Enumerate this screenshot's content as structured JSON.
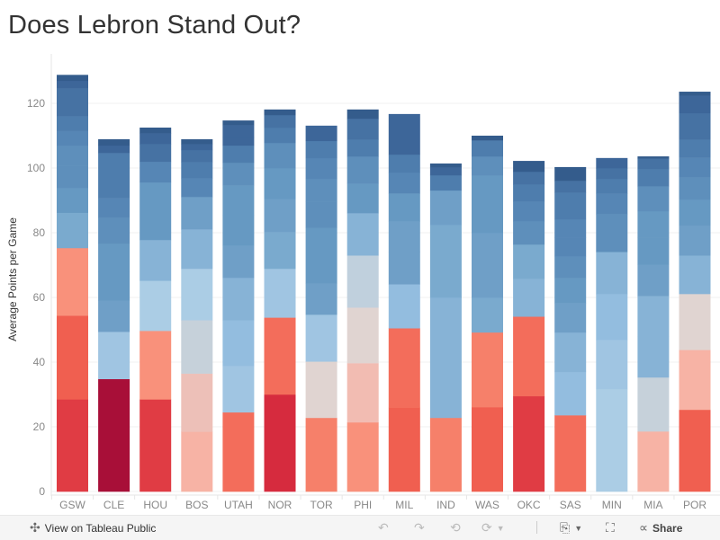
{
  "title": "Does Lebron Stand Out?",
  "chart_data": {
    "type": "bar",
    "stacked": true,
    "title": "Does Lebron Stand Out?",
    "xlabel": "",
    "ylabel": "Average Points per Game",
    "ylim": [
      0,
      132
    ],
    "yticks": [
      0,
      20,
      40,
      60,
      80,
      100,
      120
    ],
    "grid": true,
    "palette": {
      "R1": "#a80f38",
      "R2": "#d62b3e",
      "R3": "#e03c44",
      "R4": "#f05f50",
      "R5": "#f36d5b",
      "R6": "#f6806a",
      "R7": "#f9917b",
      "R8": "#f7b3a5",
      "P1": "#edc0b8",
      "P3": "#f2bcb2",
      "P2": "#e0d4d1",
      "G1": "#c6d1da",
      "G2": "#c0d0dd",
      "L1": "#abcde5",
      "L2": "#a0c5e2",
      "L3": "#93bddf",
      "L4": "#87b3d6",
      "L5": "#7aaace",
      "L6": "#6f9fc7",
      "L7": "#6699c2",
      "L8": "#5e8fbb",
      "L9": "#5686b5",
      "L10": "#4e7dad",
      "L11": "#4672a3",
      "L12": "#3d6699",
      "L13": "#345c8c"
    },
    "categories": [
      "GSW",
      "CLE",
      "HOU",
      "BOS",
      "UTAH",
      "NOR",
      "TOR",
      "PHI",
      "MIL",
      "IND",
      "WAS",
      "OKC",
      "SAS",
      "MIN",
      "MIA",
      "POR"
    ],
    "segments": [
      [
        [
          28.5,
          "R3"
        ],
        [
          25.9,
          "R4"
        ],
        [
          20.9,
          "R7"
        ],
        [
          10.9,
          "L5"
        ],
        [
          7.7,
          "L7"
        ],
        [
          6.9,
          "L8"
        ],
        [
          6.2,
          "L8"
        ],
        [
          4.5,
          "L9"
        ],
        [
          4.6,
          "L10"
        ],
        [
          3.7,
          "L11"
        ],
        [
          4.9,
          "L11"
        ],
        [
          2.3,
          "L12"
        ],
        [
          1.8,
          "L13"
        ]
      ],
      [
        [
          34.8,
          "R1"
        ],
        [
          14.6,
          "L2"
        ],
        [
          9.7,
          "L6"
        ],
        [
          8.9,
          "L7"
        ],
        [
          8.7,
          "L7"
        ],
        [
          8.0,
          "L8"
        ],
        [
          6.1,
          "L9"
        ],
        [
          13.9,
          "L10"
        ],
        [
          2.3,
          "L12"
        ],
        [
          1.9,
          "L13"
        ]
      ],
      [
        [
          28.5,
          "R3"
        ],
        [
          21.2,
          "R7"
        ],
        [
          15.5,
          "L1"
        ],
        [
          12.6,
          "L4"
        ],
        [
          17.8,
          "L7"
        ],
        [
          6.4,
          "L9"
        ],
        [
          5.5,
          "L11"
        ],
        [
          3.3,
          "L12"
        ],
        [
          1.7,
          "L13"
        ]
      ],
      [
        [
          18.5,
          "R8"
        ],
        [
          18.0,
          "P1"
        ],
        [
          16.5,
          "G1"
        ],
        [
          15.9,
          "L1"
        ],
        [
          12.2,
          "L4"
        ],
        [
          10.0,
          "L6"
        ],
        [
          5.8,
          "L9"
        ],
        [
          5.0,
          "L10"
        ],
        [
          3.7,
          "L11"
        ],
        [
          1.9,
          "L12"
        ],
        [
          1.4,
          "L13"
        ]
      ],
      [
        [
          24.5,
          "R5"
        ],
        [
          14.4,
          "L2"
        ],
        [
          14.1,
          "L3"
        ],
        [
          13.1,
          "L4"
        ],
        [
          10.0,
          "L6"
        ],
        [
          9.4,
          "L7"
        ],
        [
          9.2,
          "L7"
        ],
        [
          7.0,
          "L8"
        ],
        [
          5.3,
          "L10"
        ],
        [
          2.5,
          "L12"
        ],
        [
          3.8,
          "L12"
        ],
        [
          1.4,
          "L13"
        ]
      ],
      [
        [
          30.0,
          "R2"
        ],
        [
          23.8,
          "R5"
        ],
        [
          15.1,
          "L2"
        ],
        [
          11.4,
          "L5"
        ],
        [
          10.2,
          "L6"
        ],
        [
          9.5,
          "L7"
        ],
        [
          7.8,
          "L8"
        ],
        [
          4.7,
          "L10"
        ],
        [
          3.9,
          "L11"
        ],
        [
          1.7,
          "L13"
        ]
      ],
      [
        [
          22.8,
          "R6"
        ],
        [
          17.4,
          "P2"
        ],
        [
          14.5,
          "L2"
        ],
        [
          9.7,
          "L6"
        ],
        [
          17.2,
          "L7"
        ],
        [
          8.1,
          "L8"
        ],
        [
          7.0,
          "L8"
        ],
        [
          6.4,
          "L9"
        ],
        [
          5.3,
          "L10"
        ],
        [
          4.7,
          "L12"
        ]
      ],
      [
        [
          21.4,
          "R7"
        ],
        [
          18.3,
          "P3"
        ],
        [
          17.2,
          "P2"
        ],
        [
          16.1,
          "G2"
        ],
        [
          13.1,
          "L4"
        ],
        [
          9.2,
          "L7"
        ],
        [
          8.3,
          "L8"
        ],
        [
          5.3,
          "L10"
        ],
        [
          6.4,
          "L11"
        ],
        [
          2.8,
          "L13"
        ]
      ],
      [
        [
          25.9,
          "R4"
        ],
        [
          24.6,
          "R5"
        ],
        [
          13.6,
          "L3"
        ],
        [
          10.0,
          "L6"
        ],
        [
          9.5,
          "L6"
        ],
        [
          8.6,
          "L7"
        ],
        [
          6.4,
          "L9"
        ],
        [
          5.6,
          "L10"
        ],
        [
          12.5,
          "L12"
        ]
      ],
      [
        [
          22.8,
          "R6"
        ],
        [
          37.2,
          "L4"
        ],
        [
          22.5,
          "L5"
        ],
        [
          10.6,
          "L6"
        ],
        [
          4.7,
          "L10"
        ],
        [
          2.5,
          "L12"
        ],
        [
          1.1,
          "L13"
        ]
      ],
      [
        [
          26.1,
          "R4"
        ],
        [
          23.1,
          "R6"
        ],
        [
          10.8,
          "L5"
        ],
        [
          10.0,
          "L6"
        ],
        [
          10.0,
          "L6"
        ],
        [
          9.2,
          "L7"
        ],
        [
          8.6,
          "L7"
        ],
        [
          5.8,
          "L8"
        ],
        [
          5.0,
          "L10"
        ],
        [
          1.4,
          "L13"
        ]
      ],
      [
        [
          29.5,
          "R3"
        ],
        [
          24.6,
          "R5"
        ],
        [
          11.7,
          "L4"
        ],
        [
          10.6,
          "L5"
        ],
        [
          7.2,
          "L8"
        ],
        [
          6.1,
          "L9"
        ],
        [
          5.3,
          "L10"
        ],
        [
          3.9,
          "L11"
        ],
        [
          3.3,
          "L13"
        ]
      ],
      [
        [
          23.6,
          "R5"
        ],
        [
          13.4,
          "L3"
        ],
        [
          12.2,
          "L4"
        ],
        [
          9.1,
          "L6"
        ],
        [
          7.8,
          "L7"
        ],
        [
          6.7,
          "L8"
        ],
        [
          5.8,
          "L9"
        ],
        [
          5.6,
          "L9"
        ],
        [
          8.3,
          "L10"
        ],
        [
          3.6,
          "L11"
        ],
        [
          4.2,
          "L13"
        ]
      ],
      [
        [
          31.7,
          "L1"
        ],
        [
          15.2,
          "L2"
        ],
        [
          14.2,
          "L3"
        ],
        [
          13.0,
          "L4"
        ],
        [
          11.7,
          "L8"
        ],
        [
          6.4,
          "L9"
        ],
        [
          4.5,
          "L10"
        ],
        [
          3.3,
          "L11"
        ],
        [
          3.1,
          "L12"
        ]
      ],
      [
        [
          18.6,
          "R8"
        ],
        [
          16.7,
          "G1"
        ],
        [
          12.7,
          "L4"
        ],
        [
          12.5,
          "L4"
        ],
        [
          9.7,
          "L6"
        ],
        [
          8.4,
          "L7"
        ],
        [
          8.1,
          "L7"
        ],
        [
          7.7,
          "L8"
        ],
        [
          5.3,
          "L10"
        ],
        [
          3.3,
          "L11"
        ],
        [
          0.6,
          "L13"
        ]
      ],
      [
        [
          25.3,
          "R4"
        ],
        [
          18.5,
          "R8"
        ],
        [
          17.3,
          "P2"
        ],
        [
          11.9,
          "L4"
        ],
        [
          9.2,
          "L6"
        ],
        [
          8.1,
          "L7"
        ],
        [
          6.9,
          "L8"
        ],
        [
          6.1,
          "L9"
        ],
        [
          5.6,
          "L10"
        ],
        [
          8.1,
          "L11"
        ],
        [
          5.5,
          "L12"
        ],
        [
          1.1,
          "L13"
        ]
      ]
    ],
    "totals": [
      128.8,
      108.9,
      112.5,
      108.9,
      114.7,
      118.1,
      113.1,
      118.1,
      116.7,
      101.4,
      110.0,
      102.2,
      100.3,
      103.1,
      103.6,
      123.6
    ]
  },
  "toolbar": {
    "view_label": "View on Tableau Public",
    "share_label": "Share"
  }
}
